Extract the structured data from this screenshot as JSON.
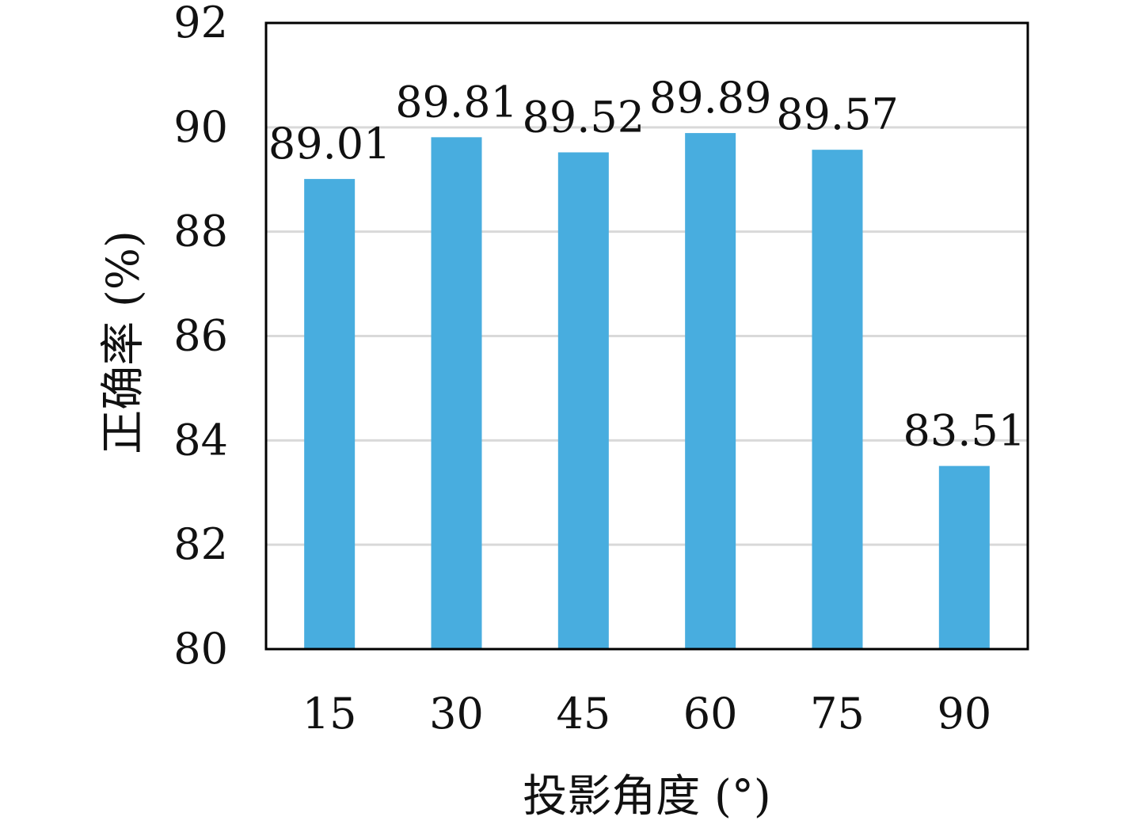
{
  "chart_data": {
    "type": "bar",
    "categories": [
      "15",
      "30",
      "45",
      "60",
      "75",
      "90"
    ],
    "values": [
      89.01,
      89.81,
      89.52,
      89.89,
      89.57,
      83.51
    ],
    "data_labels": [
      "89.01",
      "89.81",
      "89.52",
      "89.89",
      "89.57",
      "83.51"
    ],
    "xlabel": "投影角度 (°)",
    "ylabel": "正确率 (%)",
    "ylim": [
      80,
      92
    ],
    "yticks": [
      80,
      82,
      84,
      86,
      88,
      90,
      92
    ],
    "grid": true,
    "legend": "none",
    "colors": {
      "bar": "#48ADDF",
      "grid": "#d9d9d9",
      "axis": "#000000"
    }
  }
}
